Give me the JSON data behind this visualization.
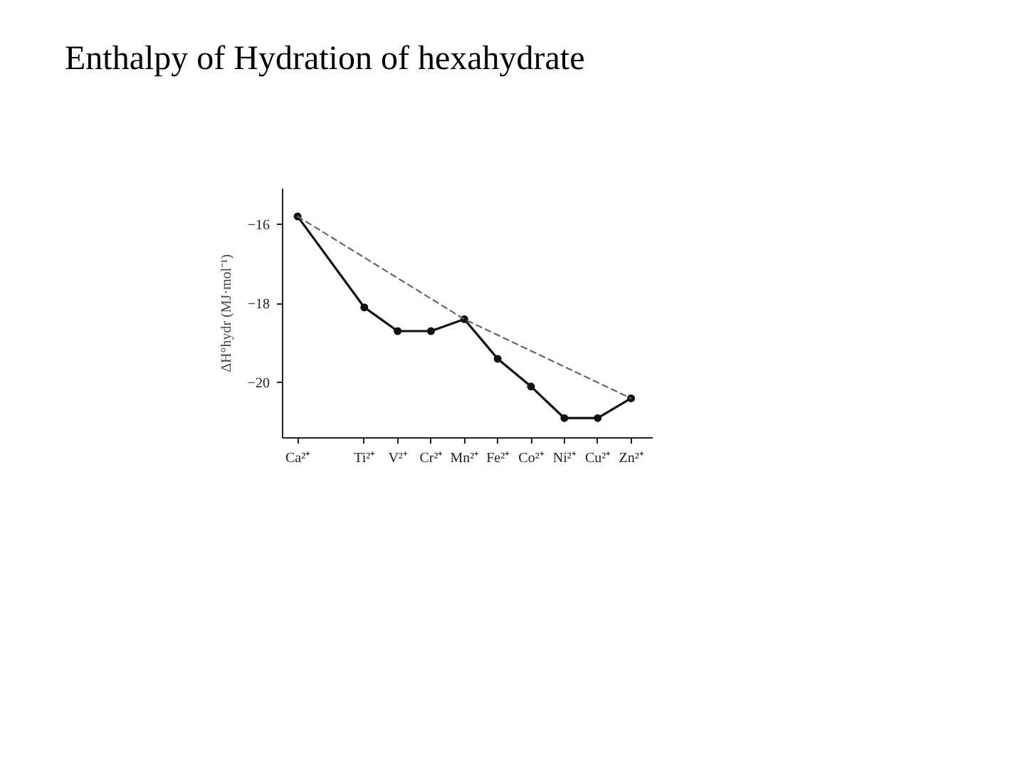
{
  "chart_data": {
    "type": "line",
    "title": "Enthalpy of Hydration of hexahydrate",
    "ylabel": "ΔH°hydr (MJ·mol⁻¹)",
    "categories": [
      "Ca²⁺",
      null,
      "Ti²⁺",
      "V²⁺",
      "Cr²⁺",
      "Mn²⁺",
      "Fe²⁺",
      "Co²⁺",
      "Ni²⁺",
      "Cu²⁺",
      "Zn²⁺"
    ],
    "ylim": [
      -21.4,
      -15.1
    ],
    "yticks": [
      -16,
      -18,
      -20
    ],
    "grid": false,
    "series": [
      {
        "color": "#111111",
        "values": [
          -15.8,
          null,
          -18.1,
          -18.7,
          -18.7,
          -18.4,
          -19.4,
          -20.1,
          -20.9,
          -20.9,
          -20.4
        ],
        "marker": "circle",
        "line_style": "solid"
      },
      {
        "color": "#666666",
        "values": [
          -15.8,
          null,
          null,
          null,
          null,
          -18.4,
          null,
          null,
          null,
          null,
          -20.4
        ],
        "marker": "none",
        "line_style": "dashed"
      }
    ]
  }
}
